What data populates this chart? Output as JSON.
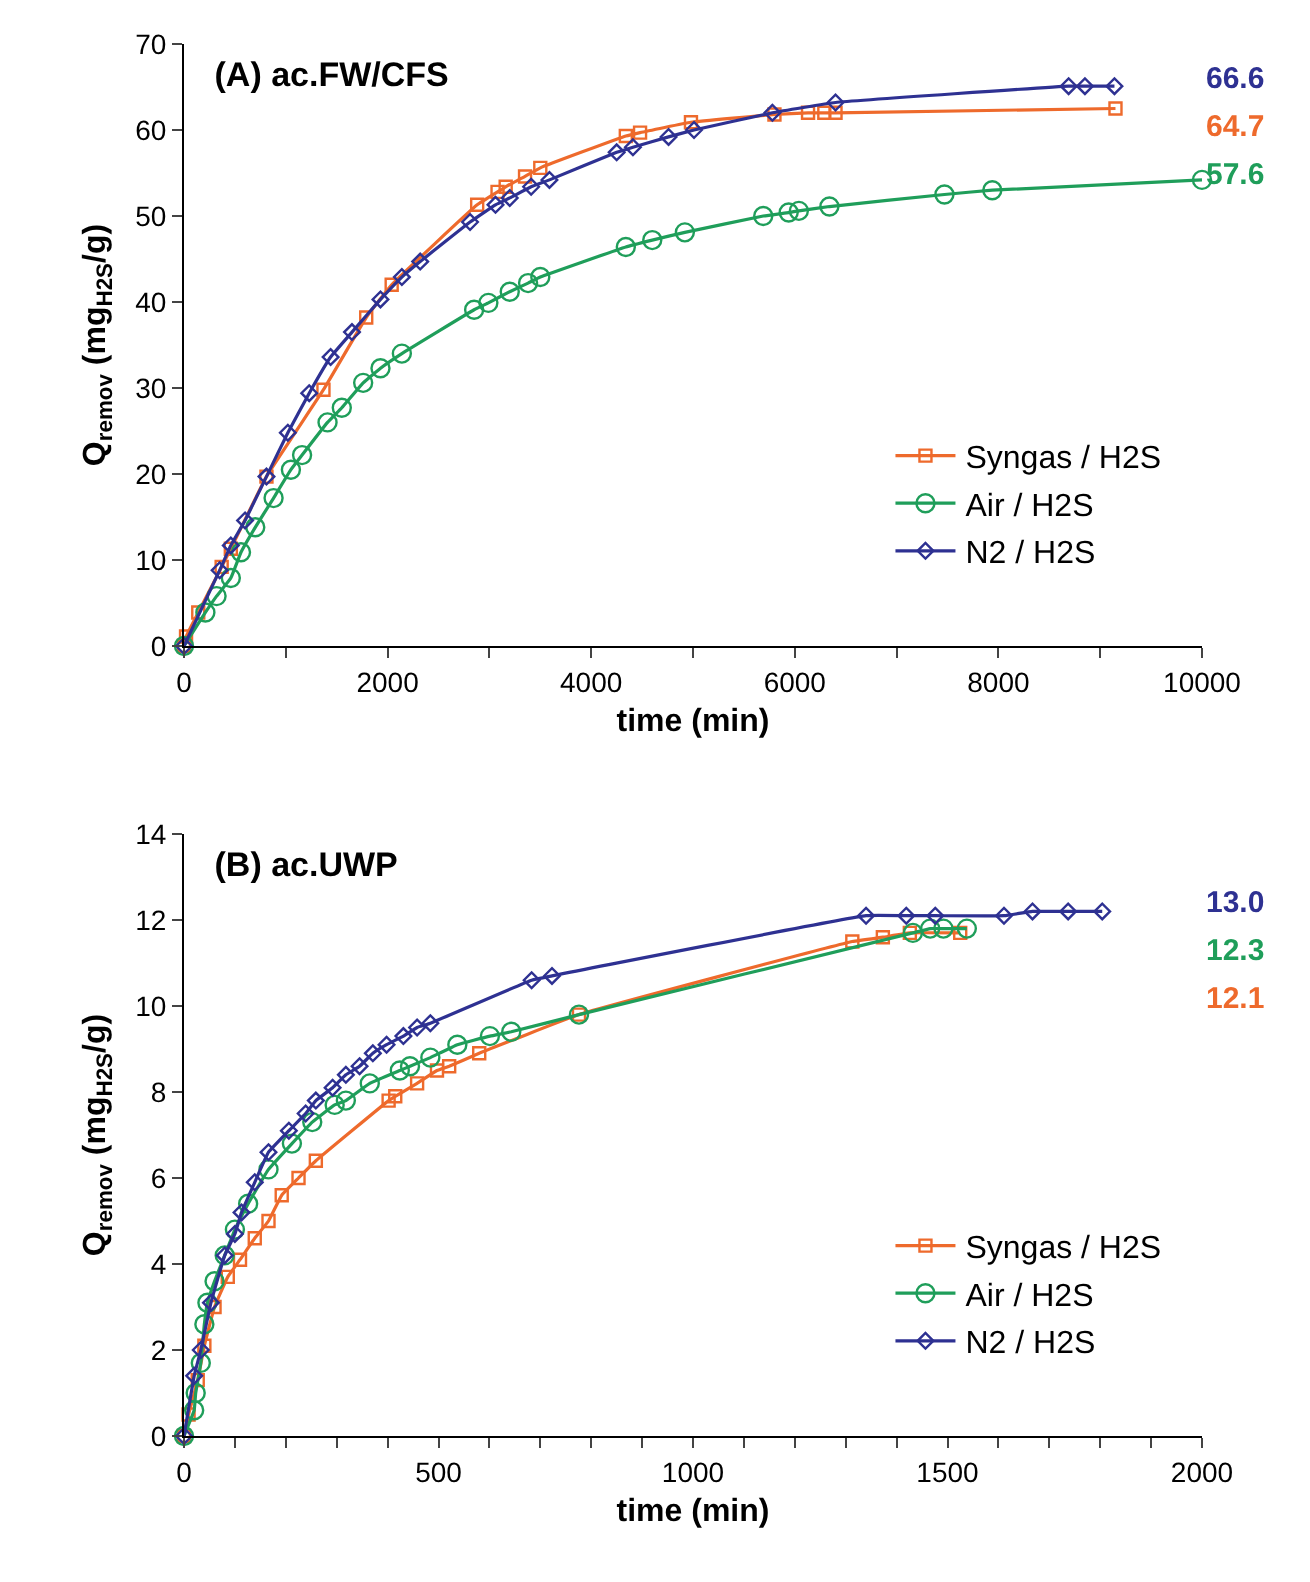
{
  "chart_data": [
    {
      "type": "line",
      "title": "(A) ac.FW/CFS",
      "xlabel": "time (min)",
      "ylabel": "Q$_{remov}$ (mg$_{H2S}$/g)",
      "xlim": [
        0,
        10000
      ],
      "ylim": [
        0,
        70
      ],
      "xticks": [
        0,
        {
          "value": 1000,
          "label": null
        },
        2000,
        {
          "value": 3000,
          "label": null
        },
        4000,
        {
          "value": 5000,
          "label": null
        },
        6000,
        {
          "value": 7000,
          "label": null
        },
        8000,
        {
          "value": 9000,
          "label": null
        },
        10000
      ],
      "yticks": [
        0,
        10,
        20,
        30,
        40,
        50,
        60,
        70
      ],
      "grid": false,
      "legend": "bottom right",
      "series": [
        {
          "name": "Syngas / H2S",
          "color": "#ee6a2c",
          "marker": "square",
          "x": [
            0,
            20,
            140,
            370,
            460,
            810,
            1370,
            1790,
            2040,
            2880,
            3080,
            3160,
            3350,
            3500,
            4340,
            4480,
            4980,
            5800,
            6130,
            6290,
            6400,
            9150
          ],
          "values": [
            0,
            1.1,
            3.9,
            9.2,
            11.3,
            19.7,
            29.8,
            38.2,
            42.0,
            51.3,
            52.8,
            53.4,
            54.6,
            55.6,
            59.3,
            59.7,
            60.9,
            61.8,
            62.0,
            62.0,
            62.0,
            62.5
          ]
        },
        {
          "name": "Air / H2S",
          "color": "#1f9e5a",
          "marker": "circle",
          "x": [
            0,
            210,
            320,
            460,
            560,
            700,
            880,
            1050,
            1160,
            1410,
            1550,
            1760,
            1930,
            2140,
            2850,
            2990,
            3200,
            3380,
            3500,
            4340,
            4600,
            4920,
            5690,
            5940,
            6040,
            6340,
            7470,
            7940,
            10000
          ],
          "values": [
            0,
            3.9,
            5.8,
            7.9,
            10.9,
            13.8,
            17.2,
            20.5,
            22.2,
            26.0,
            27.7,
            30.6,
            32.3,
            34.0,
            39.1,
            39.9,
            41.2,
            42.2,
            42.9,
            46.4,
            47.2,
            48.1,
            50.0,
            50.4,
            50.6,
            51.1,
            52.5,
            53.0,
            54.2
          ]
        },
        {
          "name": "N2 / H2S",
          "color": "#2e3192",
          "marker": "diamond",
          "x": [
            0,
            350,
            460,
            600,
            810,
            1020,
            1230,
            1440,
            1650,
            1930,
            2140,
            2320,
            2810,
            3060,
            3200,
            3410,
            3590,
            4250,
            4410,
            4760,
            5010,
            5780,
            6400,
            8690,
            8850,
            9140
          ],
          "values": [
            0,
            8.8,
            11.7,
            14.6,
            19.7,
            24.8,
            29.4,
            33.6,
            36.5,
            40.3,
            42.9,
            44.7,
            49.3,
            51.3,
            52.1,
            53.4,
            54.2,
            57.4,
            58.0,
            59.2,
            60.0,
            62.0,
            63.2,
            65.1,
            65.1,
            65.1
          ]
        }
      ],
      "annotations": [
        "64.7",
        "57.6",
        "66.6"
      ]
    },
    {
      "type": "line",
      "title": "(B) ac.UWP",
      "xlabel": "time (min)",
      "ylabel": "Q$_{remov}$ (mg$_{H2S}$/g)",
      "xlim": [
        0,
        2000
      ],
      "ylim": [
        0,
        14
      ],
      "xticks": [
        0,
        {
          "value": 100,
          "label": null
        },
        {
          "value": 200,
          "label": null
        },
        {
          "value": 300,
          "label": null
        },
        {
          "value": 400,
          "label": null
        },
        500,
        {
          "value": 600,
          "label": null
        },
        {
          "value": 700,
          "label": null
        },
        {
          "value": 800,
          "label": null
        },
        {
          "value": 900,
          "label": null
        },
        1000,
        {
          "value": 1100,
          "label": null
        },
        {
          "value": 1200,
          "label": null
        },
        {
          "value": 1300,
          "label": null
        },
        {
          "value": 1400,
          "label": null
        },
        1500,
        {
          "value": 1600,
          "label": null
        },
        {
          "value": 1700,
          "label": null
        },
        {
          "value": 1800,
          "label": null
        },
        {
          "value": 1900,
          "label": null
        },
        2000
      ],
      "yticks": [
        0,
        2,
        4,
        6,
        8,
        10,
        12,
        14
      ],
      "grid": false,
      "legend": "bottom right",
      "series": [
        {
          "name": "Syngas / H2S",
          "color": "#ee6a2c",
          "marker": "square",
          "x": [
            0,
            9,
            27,
            40,
            60,
            86,
            110,
            139,
            166,
            192,
            225,
            259,
            402,
            415,
            458,
            497,
            521,
            580,
            776,
            1313,
            1373,
            1426,
            1525
          ],
          "values": [
            0,
            0.5,
            1.3,
            2.1,
            3.0,
            3.7,
            4.1,
            4.6,
            5.0,
            5.6,
            6.0,
            6.4,
            7.8,
            7.9,
            8.2,
            8.5,
            8.6,
            8.9,
            9.8,
            11.5,
            11.6,
            11.7,
            11.7
          ]
        },
        {
          "name": "Air / H2S",
          "color": "#1f9e5a",
          "marker": "circle",
          "x": [
            0,
            20,
            23,
            33,
            40,
            46,
            60,
            80,
            100,
            126,
            166,
            212,
            252,
            296,
            318,
            365,
            424,
            444,
            484,
            537,
            601,
            643,
            776,
            1432,
            1466,
            1492,
            1538
          ],
          "values": [
            0,
            0.6,
            1.0,
            1.7,
            2.6,
            3.1,
            3.6,
            4.2,
            4.8,
            5.4,
            6.2,
            6.8,
            7.3,
            7.7,
            7.8,
            8.2,
            8.5,
            8.6,
            8.8,
            9.1,
            9.3,
            9.4,
            9.8,
            11.7,
            11.8,
            11.8,
            11.8
          ]
        },
        {
          "name": "N2 / H2S",
          "color": "#2e3192",
          "marker": "diamond",
          "x": [
            0,
            20,
            33,
            53,
            80,
            100,
            113,
            139,
            166,
            206,
            239,
            259,
            292,
            318,
            345,
            371,
            398,
            431,
            458,
            484,
            683,
            723,
            1340,
            1419,
            1476,
            1611,
            1667,
            1737,
            1804
          ],
          "values": [
            0,
            1.4,
            2.0,
            3.1,
            4.2,
            4.7,
            5.2,
            5.9,
            6.6,
            7.1,
            7.5,
            7.8,
            8.1,
            8.4,
            8.6,
            8.9,
            9.1,
            9.3,
            9.5,
            9.6,
            10.6,
            10.7,
            12.1,
            12.1,
            12.1,
            12.1,
            12.2,
            12.2,
            12.2
          ]
        }
      ],
      "annotations": [
        "12.1",
        "12.3",
        "13.0"
      ]
    }
  ]
}
